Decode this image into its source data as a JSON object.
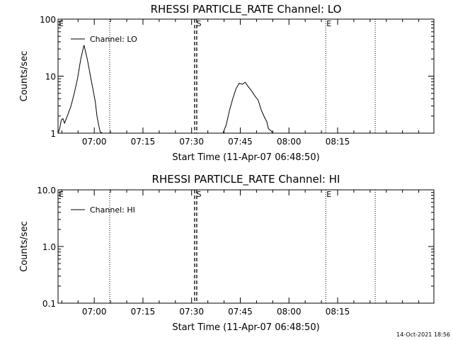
{
  "footer": {
    "timestamp": "14-Oct-2021 18:56"
  },
  "chart_data": [
    {
      "type": "line",
      "title": "RHESSI PARTICLE_RATE Channel: LO",
      "xlabel": "Start Time (11-Apr-07 06:48:50)",
      "ylabel": "Counts/sec",
      "yscale": "log",
      "ylim": [
        1,
        100
      ],
      "yticks": [
        1,
        10,
        100
      ],
      "ytick_labels": [
        "1",
        "10",
        "100"
      ],
      "xlim_seconds": [
        0,
        6950
      ],
      "xticks_seconds": [
        670,
        1570,
        2470,
        3370,
        4270,
        5170
      ],
      "xtick_labels": [
        "07:00",
        "07:15",
        "07:30",
        "07:45",
        "08:00",
        "08:15"
      ],
      "grid": false,
      "legend": {
        "position": "top-left",
        "entries": [
          "Channel: LO"
        ]
      },
      "markers": [
        {
          "label": "E",
          "x": 0,
          "style": "none"
        },
        {
          "label": "",
          "x": 955,
          "style": "dotted"
        },
        {
          "label": "S",
          "x": 2545,
          "style": "dashed"
        },
        {
          "label": "E",
          "x": 4950,
          "style": "dotted"
        },
        {
          "label": "",
          "x": 5865,
          "style": "dotted"
        }
      ],
      "series": [
        {
          "name": "Channel: LO",
          "x": [
            0,
            30,
            60,
            90,
            120,
            180,
            240,
            300,
            360,
            420,
            480,
            540,
            600,
            660,
            690,
            720,
            750,
            780,
            820
          ],
          "y": [
            1.0,
            1.2,
            1.7,
            1.8,
            1.5,
            2.1,
            3.0,
            5.0,
            9.0,
            20.0,
            35.0,
            20.0,
            10.0,
            5.0,
            3.5,
            2.0,
            1.4,
            1.05,
            1.0
          ]
        },
        {
          "name": "",
          "x": [
            3050,
            3110,
            3170,
            3230,
            3290,
            3350,
            3410,
            3460,
            3520,
            3580,
            3640,
            3700,
            3760,
            3830,
            3860,
            3890,
            3940,
            3970
          ],
          "y": [
            1.0,
            1.4,
            2.5,
            4.0,
            6.0,
            7.5,
            7.2,
            7.8,
            6.5,
            5.5,
            4.5,
            3.8,
            2.5,
            1.8,
            1.6,
            1.2,
            1.1,
            1.0
          ]
        }
      ]
    },
    {
      "type": "line",
      "title": "RHESSI PARTICLE_RATE Channel: HI",
      "xlabel": "Start Time (11-Apr-07 06:48:50)",
      "ylabel": "Counts/sec",
      "yscale": "log",
      "ylim": [
        0.1,
        10
      ],
      "yticks": [
        0.1,
        1,
        10
      ],
      "ytick_labels": [
        "0.1",
        "1.0",
        "10.0"
      ],
      "xlim_seconds": [
        0,
        6950
      ],
      "xticks_seconds": [
        670,
        1570,
        2470,
        3370,
        4270,
        5170
      ],
      "xtick_labels": [
        "07:00",
        "07:15",
        "07:30",
        "07:45",
        "08:00",
        "08:15"
      ],
      "grid": false,
      "legend": {
        "position": "top-left",
        "entries": [
          "Channel: HI"
        ]
      },
      "markers": [
        {
          "label": "E",
          "x": 0,
          "style": "none"
        },
        {
          "label": "",
          "x": 955,
          "style": "dotted"
        },
        {
          "label": "S",
          "x": 2545,
          "style": "dashed"
        },
        {
          "label": "E",
          "x": 4950,
          "style": "dotted"
        },
        {
          "label": "",
          "x": 5865,
          "style": "dotted"
        }
      ],
      "series": [
        {
          "name": "Channel: HI",
          "x": [],
          "y": []
        }
      ]
    }
  ]
}
